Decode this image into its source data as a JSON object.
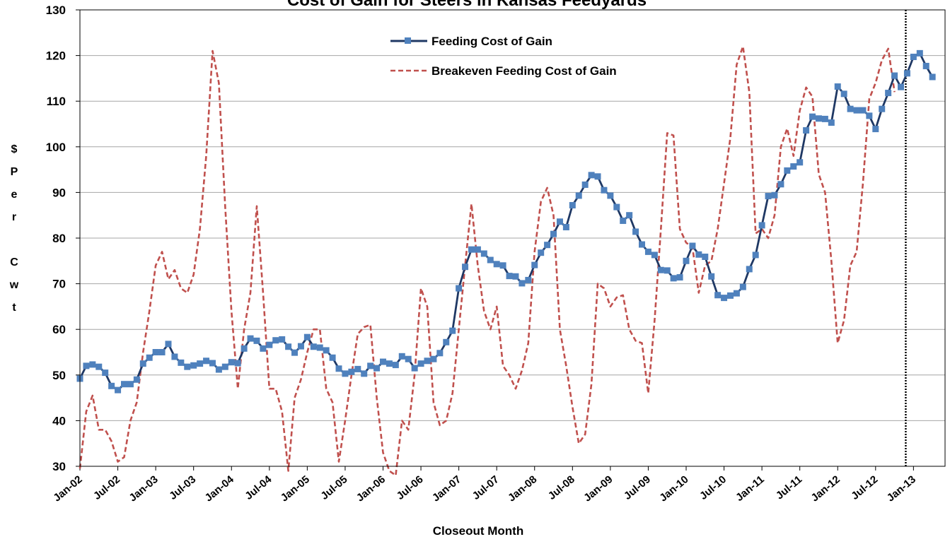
{
  "chart_data": {
    "type": "line",
    "title": "Cost of Gain for Steers in Kansas Feedyards",
    "xlabel": "Closeout Month",
    "ylabel": "$ Per Cwt",
    "ylabel_lines": [
      "$",
      "P",
      "e",
      "r",
      "",
      "C",
      "w",
      "t"
    ],
    "ylim": [
      30,
      130
    ],
    "yticks": [
      30,
      40,
      50,
      60,
      70,
      80,
      90,
      100,
      110,
      120,
      130
    ],
    "xlim": [
      "Jan-02",
      "Jun-13"
    ],
    "xtick_labels": [
      "Jan-02",
      "Jul-02",
      "Jan-03",
      "Jul-03",
      "Jan-04",
      "Jul-04",
      "Jan-05",
      "Jul-05",
      "Jan-06",
      "Jul-06",
      "Jan-07",
      "Jul-07",
      "Jan-08",
      "Jul-08",
      "Jan-09",
      "Jul-09",
      "Jan-10",
      "Jul-10",
      "Jan-11",
      "Jul-11",
      "Jan-12",
      "Jul-12",
      "Jan-13"
    ],
    "grid": "horizontal",
    "legend_position": "top-center",
    "vertical_marker": {
      "at": "Dec-12",
      "style": "dotted"
    },
    "series": [
      {
        "name": "Feeding Cost of Gain",
        "color": "#1f3864",
        "marker_color": "#4f81bd",
        "style": "solid-with-square-markers",
        "values": [
          49.2,
          52.0,
          52.3,
          51.8,
          50.5,
          47.6,
          46.7,
          48.0,
          48.0,
          49.0,
          52.5,
          53.8,
          55.0,
          55.0,
          56.8,
          54.0,
          52.7,
          51.8,
          52.1,
          52.5,
          53.1,
          52.6,
          51.2,
          51.8,
          52.8,
          52.6,
          55.8,
          58.0,
          57.5,
          55.8,
          56.6,
          57.6,
          57.8,
          56.2,
          54.9,
          56.3,
          58.3,
          56.2,
          56.0,
          55.4,
          53.8,
          51.4,
          50.3,
          50.7,
          51.3,
          50.3,
          52.0,
          51.5,
          52.9,
          52.5,
          52.2,
          54.1,
          53.5,
          51.5,
          52.5,
          53.1,
          53.5,
          54.8,
          57.2,
          59.7,
          69.0,
          73.7,
          77.5,
          77.5,
          76.6,
          75.2,
          74.3,
          74.0,
          71.7,
          71.6,
          70.1,
          70.8,
          74.1,
          76.8,
          78.5,
          80.9,
          83.6,
          82.4,
          87.2,
          89.3,
          91.7,
          93.8,
          93.5,
          90.5,
          89.3,
          86.8,
          83.8,
          85.0,
          81.4,
          78.6,
          77.0,
          76.3,
          73.0,
          72.9,
          71.2,
          71.4,
          75.0,
          78.3,
          76.4,
          75.9,
          71.6,
          67.5,
          66.9,
          67.4,
          67.9,
          69.3,
          73.2,
          76.3,
          82.8,
          89.2,
          89.4,
          91.8,
          94.8,
          95.7,
          96.6,
          103.6,
          106.6,
          106.2,
          106.1,
          105.3,
          113.2,
          111.6,
          108.3,
          108.0,
          108.0,
          106.8,
          103.9,
          108.3,
          111.8,
          115.6,
          113.1,
          116.1,
          119.7,
          120.5,
          117.7,
          115.3
        ]
      },
      {
        "name": "Breakeven Feeding Cost of Gain",
        "color": "#c0504d",
        "style": "dashed",
        "values": [
          29.5,
          42.0,
          45.5,
          38.0,
          38.0,
          35.5,
          31.0,
          32.0,
          40.0,
          44.0,
          55.0,
          64.0,
          74.0,
          77.0,
          71.0,
          73.0,
          69.0,
          68.0,
          72.0,
          82.0,
          98.0,
          121.0,
          114.0,
          87.0,
          64.0,
          47.0,
          60.0,
          68.0,
          87.0,
          68.0,
          47.0,
          47.0,
          42.0,
          29.0,
          45.0,
          49.0,
          55.0,
          60.0,
          60.0,
          47.0,
          44.0,
          31.0,
          40.0,
          50.0,
          59.0,
          60.5,
          61.0,
          45.0,
          33.0,
          29.0,
          28.0,
          40.0,
          38.0,
          50.0,
          69.0,
          65.0,
          44.0,
          39.0,
          40.0,
          46.0,
          60.0,
          74.0,
          87.5,
          74.0,
          64.0,
          60.0,
          65.0,
          52.0,
          50.0,
          47.0,
          51.0,
          57.0,
          77.0,
          88.0,
          91.0,
          85.0,
          60.0,
          52.0,
          43.0,
          35.0,
          37.0,
          48.0,
          70.0,
          69.0,
          65.0,
          67.0,
          67.5,
          60.0,
          57.5,
          57.0,
          46.0,
          62.0,
          82.0,
          103.0,
          102.5,
          82.0,
          79.0,
          78.0,
          68.0,
          74.0,
          75.0,
          82.0,
          92.0,
          102.0,
          118.0,
          122.0,
          112.0,
          81.0,
          82.0,
          80.0,
          85.0,
          100.0,
          104.0,
          98.0,
          108.0,
          113.0,
          111.0,
          94.0,
          90.0,
          75.0,
          57.0,
          62.0,
          74.0,
          77.0,
          92.0,
          110.5,
          114.0,
          119.0,
          121.5,
          112.0
        ]
      }
    ]
  }
}
